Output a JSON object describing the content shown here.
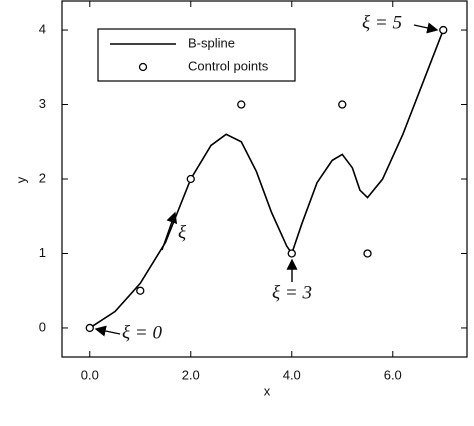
{
  "chart_data": {
    "type": "line",
    "xlabel": "x",
    "ylabel": "y",
    "xlim": [
      -0.55,
      7.47
    ],
    "ylim": [
      -0.39,
      4.39
    ],
    "xticks": [
      {
        "value": 0,
        "label": "0.0"
      },
      {
        "value": 2,
        "label": "2.0"
      },
      {
        "value": 4,
        "label": "4.0"
      },
      {
        "value": 6,
        "label": "6.0"
      }
    ],
    "yticks": [
      0,
      1,
      2,
      3,
      4
    ],
    "legend": "upper left",
    "series": [
      {
        "name": "B-spline",
        "type": "line",
        "color": "#000000",
        "x": [
          0,
          0.5,
          1,
          1.5,
          2,
          2.4,
          2.7,
          3.0,
          3.3,
          3.6,
          3.9,
          4.0,
          4.2,
          4.5,
          4.8,
          5.0,
          5.2,
          5.35,
          5.5,
          5.8,
          6.2,
          6.6,
          7.0
        ],
        "values": [
          0,
          0.22,
          0.6,
          1.15,
          2.0,
          2.45,
          2.6,
          2.5,
          2.1,
          1.55,
          1.1,
          1.0,
          1.4,
          1.95,
          2.25,
          2.33,
          2.15,
          1.85,
          1.75,
          2.0,
          2.6,
          3.3,
          4.0
        ]
      },
      {
        "name": "Control points",
        "type": "scatter",
        "color": "#000000",
        "x": [
          0,
          1,
          2,
          3,
          4,
          5,
          5.5,
          7
        ],
        "values": [
          0,
          0.5,
          2,
          3,
          1,
          3,
          1,
          4
        ]
      }
    ],
    "annotations": [
      "ξ = 0",
      "ξ",
      "ξ = 3",
      "ξ = 5"
    ]
  }
}
